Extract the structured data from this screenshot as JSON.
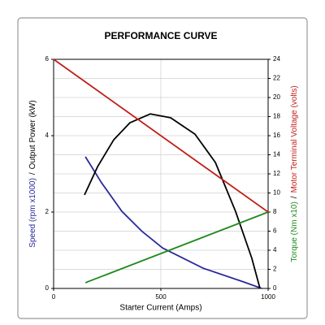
{
  "chart_data": {
    "type": "line",
    "title": "PERFORMANCE CURVE",
    "xlabel": "Starter Current (Amps)",
    "ylabel": [
      "Speed (rpm x1000)",
      "/",
      "Output Power (kW)"
    ],
    "y2label": [
      "Torque (Nm x10)",
      "/",
      "Motor Terminal Voltage (volts)"
    ],
    "xlim": [
      0,
      1000
    ],
    "xticks": [
      0,
      500,
      1000
    ],
    "ylim": [
      0,
      6
    ],
    "yticks": [
      0,
      2,
      4,
      6
    ],
    "y2lim": [
      0,
      24
    ],
    "y2ticks": [
      0,
      2,
      4,
      6,
      8,
      10,
      12,
      14,
      16,
      18,
      20,
      22,
      24
    ],
    "grid": true,
    "series": [
      {
        "name": "Speed (rpm x1000)",
        "color": "#2b2b9a",
        "axis": "y",
        "x": [
          148,
          223,
          318,
          413,
          508,
          697,
          886,
          970
        ],
        "values": [
          3.45,
          2.77,
          2.02,
          1.49,
          1.06,
          0.53,
          0.17,
          0
        ]
      },
      {
        "name": "Output Power (kW)",
        "color": "#000000",
        "axis": "y",
        "x": [
          144,
          205,
          280,
          356,
          451,
          545,
          659,
          754,
          848,
          924,
          962
        ],
        "values": [
          2.45,
          3.19,
          3.89,
          4.34,
          4.57,
          4.47,
          4.04,
          3.3,
          2.02,
          0.79,
          0
        ]
      },
      {
        "name": "Torque (Nm x10)",
        "color": "#1e8a1e",
        "axis": "y2",
        "x": [
          148,
          1000
        ],
        "values": [
          0.6,
          8
        ]
      },
      {
        "name": "Motor Terminal Voltage (volts)",
        "color": "#c0201a",
        "axis": "y2",
        "x": [
          0,
          1000
        ],
        "values": [
          24,
          8
        ]
      }
    ]
  }
}
